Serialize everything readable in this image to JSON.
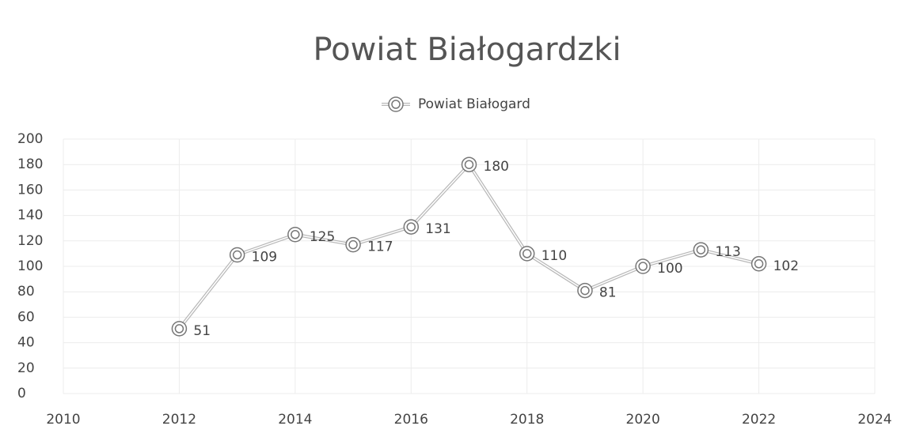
{
  "chart_data": {
    "type": "line",
    "title": "Powiat Białogardzki",
    "x": [
      2012,
      2013,
      2014,
      2015,
      2016,
      2017,
      2018,
      2019,
      2020,
      2021,
      2022
    ],
    "series": [
      {
        "name": "Powiat Białogard",
        "color": "#b8b8b8",
        "values": [
          51,
          109,
          125,
          117,
          131,
          180,
          110,
          81,
          100,
          113,
          102
        ]
      }
    ],
    "xlim": [
      2010,
      2024
    ],
    "xticks": [
      2010,
      2012,
      2014,
      2016,
      2018,
      2020,
      2022,
      2024
    ],
    "ylim": [
      0,
      200
    ],
    "yticks": [
      0,
      20,
      40,
      60,
      80,
      100,
      120,
      140,
      160,
      180,
      200
    ],
    "grid": true,
    "legend": "top"
  }
}
